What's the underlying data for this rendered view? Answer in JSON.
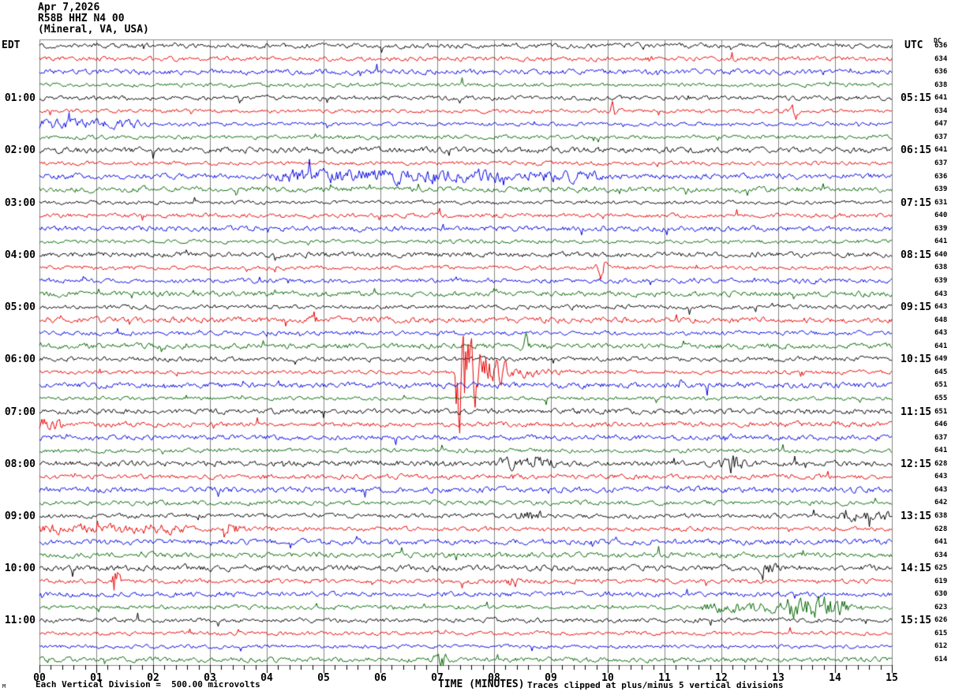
{
  "title": {
    "date": "Apr 7,2026",
    "station": "R58B HHZ N4 00",
    "location": "(Mineral, VA, USA)"
  },
  "axes": {
    "left_header": "EDT",
    "right_header": "UTC",
    "dc_header": "DC",
    "x_title": "TIME (MINUTES)",
    "x_ticks": [
      "00",
      "01",
      "02",
      "03",
      "04",
      "05",
      "06",
      "07",
      "08",
      "09",
      "10",
      "11",
      "12",
      "13",
      "14",
      "15"
    ]
  },
  "footer": {
    "corner_glyph": "M",
    "scale_note": "Each Vertical Division =  500.00 microvolts",
    "clip_note": "Traces clipped at plus/minus 5 vertical divisions"
  },
  "chart_data": {
    "type": "line",
    "kind": "helicorder-seismogram",
    "minutes_per_line": 15,
    "x_range_minutes": [
      0,
      15
    ],
    "lines_per_hour": 4,
    "vertical_division_microvolts": 500.0,
    "clip_divisions": 5,
    "grid": "vertical-minute-lines",
    "grid_color": "#858585",
    "color_cycle": [
      "#000000",
      "#e60000",
      "#0000e0",
      "#006600"
    ],
    "rows": [
      {
        "dc": 636
      },
      {
        "dc": 634
      },
      {
        "dc": 636
      },
      {
        "dc": 638
      },
      {
        "edt": "01:00",
        "utc": "05:15",
        "dc": 641
      },
      {
        "dc": 634
      },
      {
        "dc": 647
      },
      {
        "dc": 637
      },
      {
        "edt": "02:00",
        "utc": "06:15",
        "dc": 641
      },
      {
        "dc": 637
      },
      {
        "dc": 636
      },
      {
        "dc": 639
      },
      {
        "edt": "03:00",
        "utc": "07:15",
        "dc": 631
      },
      {
        "dc": 640
      },
      {
        "dc": 639
      },
      {
        "dc": 641
      },
      {
        "edt": "04:00",
        "utc": "08:15",
        "dc": 640
      },
      {
        "dc": 638
      },
      {
        "dc": 639
      },
      {
        "dc": 643
      },
      {
        "edt": "05:00",
        "utc": "09:15",
        "dc": 643
      },
      {
        "dc": 648
      },
      {
        "dc": 643
      },
      {
        "dc": 641
      },
      {
        "edt": "06:00",
        "utc": "10:15",
        "dc": 649
      },
      {
        "dc": 645
      },
      {
        "dc": 651
      },
      {
        "dc": 655
      },
      {
        "edt": "07:00",
        "utc": "11:15",
        "dc": 651
      },
      {
        "dc": 646
      },
      {
        "dc": 637
      },
      {
        "dc": 641
      },
      {
        "edt": "08:00",
        "utc": "12:15",
        "dc": 628
      },
      {
        "dc": 643
      },
      {
        "dc": 643
      },
      {
        "dc": 642
      },
      {
        "edt": "09:00",
        "utc": "13:15",
        "dc": 638
      },
      {
        "dc": 628
      },
      {
        "dc": 641
      },
      {
        "dc": 634
      },
      {
        "edt": "10:00",
        "utc": "14:15",
        "dc": 625
      },
      {
        "dc": 619
      },
      {
        "dc": 630
      },
      {
        "dc": 623
      },
      {
        "edt": "11:00",
        "utc": "15:15",
        "dc": 626
      },
      {
        "dc": 615
      },
      {
        "dc": 612
      },
      {
        "dc": 614
      }
    ],
    "events": [
      {
        "row": 6,
        "t": 10.1,
        "dur": 0.15,
        "amp": 9,
        "type": "spike"
      },
      {
        "row": 6,
        "t": 13.3,
        "dur": 0.12,
        "amp": 8,
        "type": "spike"
      },
      {
        "row": 7,
        "t": 0.0,
        "dur": 1.8,
        "amp": 7,
        "type": "band"
      },
      {
        "row": 11,
        "t": 4.4,
        "dur": 3.6,
        "amp": 10,
        "type": "band"
      },
      {
        "row": 11,
        "t": 8.6,
        "dur": 1.2,
        "amp": 7,
        "type": "band"
      },
      {
        "row": 18,
        "t": 9.9,
        "dur": 0.1,
        "amp": 12,
        "type": "spike"
      },
      {
        "row": 22,
        "t": 4.8,
        "dur": 0.08,
        "amp": 14,
        "type": "spike"
      },
      {
        "row": 24,
        "t": 8.55,
        "dur": 0.08,
        "amp": 12,
        "type": "spike"
      },
      {
        "row": 26,
        "t": 7.35,
        "dur": 1.2,
        "amp": 80,
        "type": "quake"
      },
      {
        "row": 30,
        "t": 0.0,
        "dur": 0.4,
        "amp": 9,
        "type": "band"
      },
      {
        "row": 33,
        "t": 8.1,
        "dur": 0.9,
        "amp": 7,
        "type": "band"
      },
      {
        "row": 33,
        "t": 12.2,
        "dur": 0.2,
        "amp": 9,
        "type": "spike"
      },
      {
        "row": 37,
        "t": 8.4,
        "dur": 0.4,
        "amp": 8,
        "type": "band"
      },
      {
        "row": 37,
        "t": 14.1,
        "dur": 0.8,
        "amp": 7,
        "type": "band"
      },
      {
        "row": 38,
        "t": 0.0,
        "dur": 2.4,
        "amp": 7,
        "type": "band"
      },
      {
        "row": 38,
        "t": 3.25,
        "dur": 0.4,
        "amp": 18,
        "type": "quake"
      },
      {
        "row": 41,
        "t": 12.7,
        "dur": 0.35,
        "amp": 14,
        "type": "quake"
      },
      {
        "row": 42,
        "t": 1.35,
        "dur": 0.1,
        "amp": 12,
        "type": "spike"
      },
      {
        "row": 42,
        "t": 8.3,
        "dur": 0.12,
        "amp": 10,
        "type": "spike"
      },
      {
        "row": 44,
        "t": 11.8,
        "dur": 2.4,
        "amp": 8,
        "type": "band"
      },
      {
        "row": 44,
        "t": 13.2,
        "dur": 0.9,
        "amp": 12,
        "type": "band"
      },
      {
        "row": 48,
        "t": 7.05,
        "dur": 0.15,
        "amp": 9,
        "type": "spike"
      }
    ]
  }
}
